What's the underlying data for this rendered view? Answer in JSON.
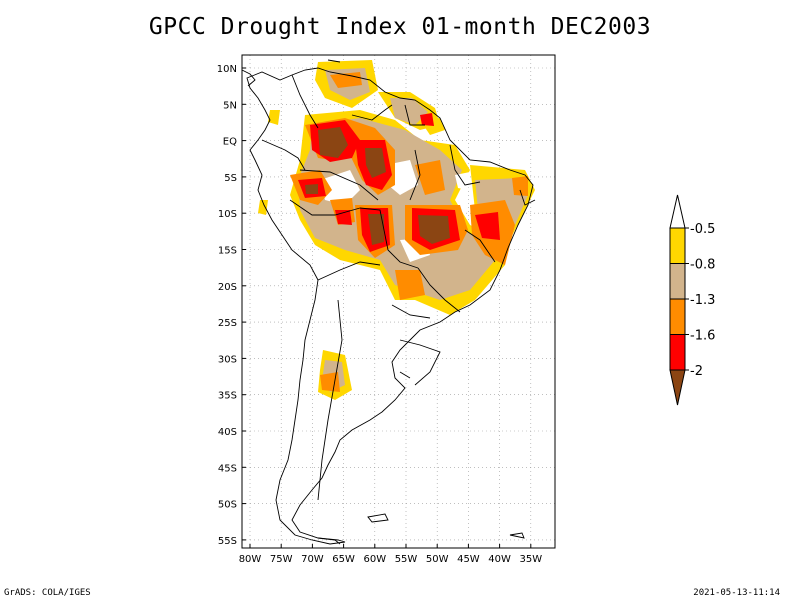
{
  "title": "GPCC Drought Index 01-month DEC2003",
  "map": {
    "lat_labels": [
      "10N",
      "5N",
      "EQ",
      "5S",
      "10S",
      "15S",
      "20S",
      "25S",
      "30S",
      "35S",
      "40S",
      "45S",
      "50S",
      "55S"
    ],
    "lon_labels": [
      "80W",
      "75W",
      "70W",
      "65W",
      "60W",
      "55W",
      "50W",
      "45W",
      "40W",
      "35W"
    ]
  },
  "legend": {
    "thresholds": [
      "-0.5",
      "-0.8",
      "-1.3",
      "-1.6",
      "-2"
    ],
    "colors": [
      "#ffffff",
      "#ffd700",
      "#d2b48c",
      "#ff8c00",
      "#ff0000",
      "#8b4513"
    ]
  },
  "footer": {
    "left": "GrADS: COLA/IGES",
    "right": "2021-05-13-11:14"
  }
}
